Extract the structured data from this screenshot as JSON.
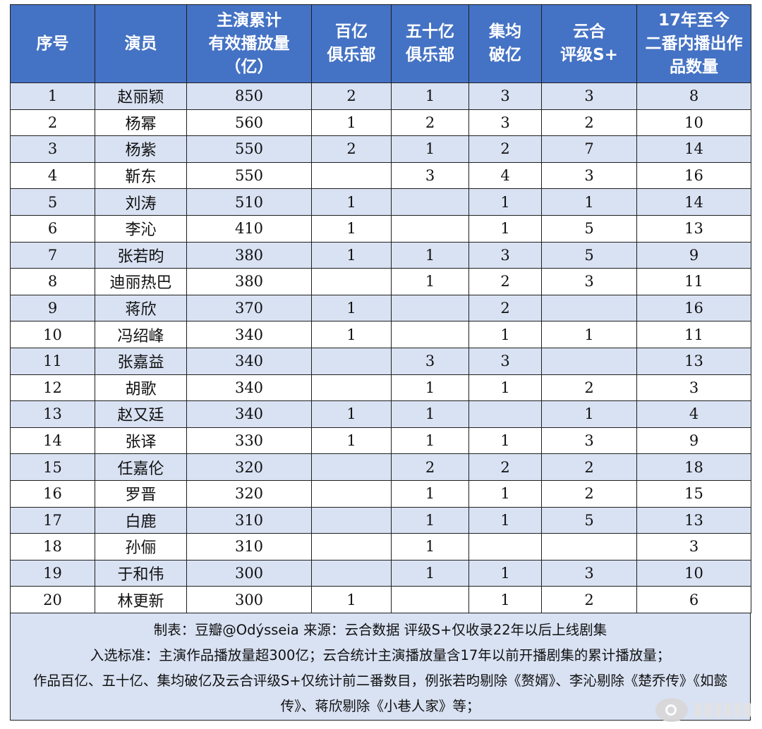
{
  "table": {
    "headers": [
      "序号",
      "演员",
      "主演累计\n有效播放量\n（亿）",
      "百亿\n俱乐部",
      "五十亿\n俱乐部",
      "集均\n破亿",
      "云合\n评级S+",
      "17年至今\n二番内播出作\n品数量"
    ],
    "rows": [
      [
        "1",
        "赵丽颖",
        "850",
        "2",
        "1",
        "3",
        "3",
        "8"
      ],
      [
        "2",
        "杨幂",
        "560",
        "1",
        "2",
        "3",
        "2",
        "10"
      ],
      [
        "3",
        "杨紫",
        "550",
        "2",
        "1",
        "2",
        "7",
        "14"
      ],
      [
        "4",
        "靳东",
        "550",
        "",
        "3",
        "4",
        "3",
        "16"
      ],
      [
        "5",
        "刘涛",
        "510",
        "1",
        "",
        "1",
        "1",
        "14"
      ],
      [
        "6",
        "李沁",
        "410",
        "1",
        "",
        "1",
        "5",
        "13"
      ],
      [
        "7",
        "张若昀",
        "380",
        "1",
        "1",
        "3",
        "5",
        "9"
      ],
      [
        "8",
        "迪丽热巴",
        "380",
        "",
        "1",
        "2",
        "3",
        "11"
      ],
      [
        "9",
        "蒋欣",
        "370",
        "1",
        "",
        "2",
        "",
        "16"
      ],
      [
        "10",
        "冯绍峰",
        "340",
        "1",
        "",
        "1",
        "1",
        "11"
      ],
      [
        "11",
        "张嘉益",
        "340",
        "",
        "3",
        "3",
        "",
        "13"
      ],
      [
        "12",
        "胡歌",
        "340",
        "",
        "1",
        "1",
        "2",
        "3"
      ],
      [
        "13",
        "赵又廷",
        "340",
        "1",
        "1",
        "",
        "1",
        "4"
      ],
      [
        "14",
        "张译",
        "330",
        "1",
        "1",
        "1",
        "3",
        "9"
      ],
      [
        "15",
        "任嘉伦",
        "320",
        "",
        "2",
        "2",
        "2",
        "18"
      ],
      [
        "16",
        "罗晋",
        "320",
        "",
        "1",
        "1",
        "2",
        "15"
      ],
      [
        "17",
        "白鹿",
        "310",
        "",
        "1",
        "1",
        "5",
        "13"
      ],
      [
        "18",
        "孙俪",
        "310",
        "",
        "1",
        "",
        "",
        "3"
      ],
      [
        "19",
        "于和伟",
        "300",
        "",
        "1",
        "1",
        "3",
        "10"
      ],
      [
        "20",
        "林更新",
        "300",
        "1",
        "",
        "1",
        "2",
        "6"
      ]
    ]
  },
  "notes": {
    "line1": "制表：豆瓣@Odýsseia  来源：云合数据 评级S+仅收录22年以后上线剧集",
    "line2": "入选标准：主演作品播放量超300亿；云合统计主演播放量含17年以前开播剧集的累计播放量；",
    "line3": "作品百亿、五十亿、集均破亿及云合评级S+仅统计前二番数目，例张若昀剔除《赘婿》、李沁剔除《楚乔传》《如懿传》、蒋欣剔除《小巷人家》等；"
  },
  "watermark": {
    "icon": "weibo-logo-icon"
  }
}
